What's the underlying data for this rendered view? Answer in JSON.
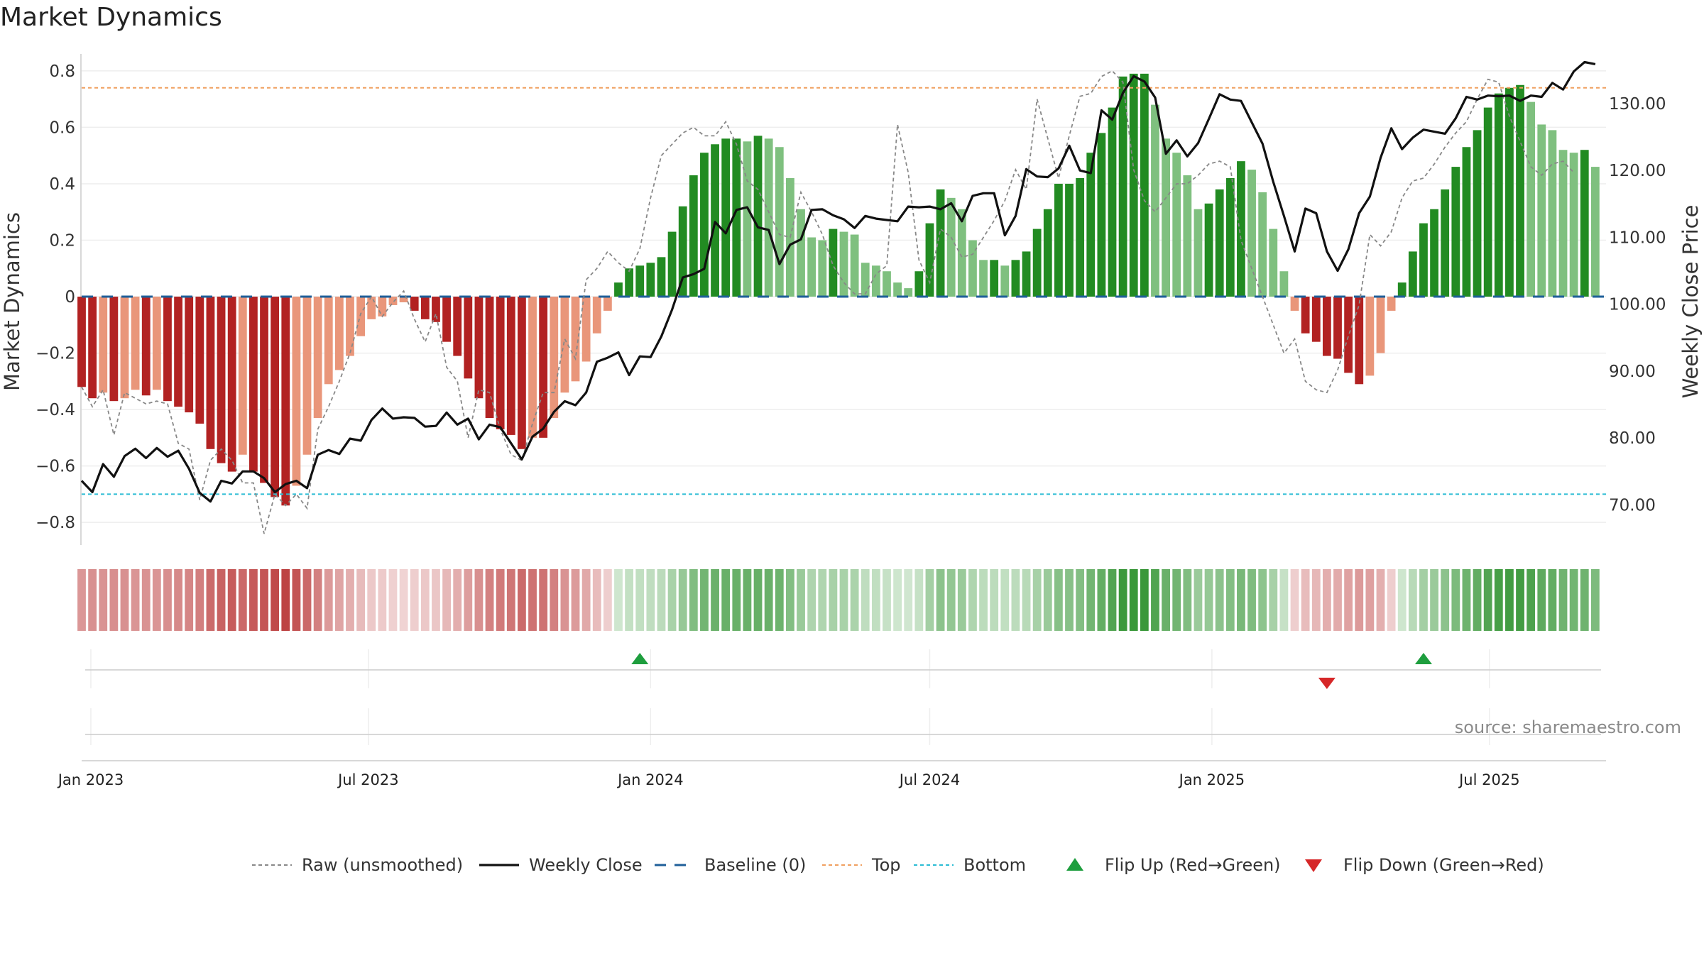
{
  "chart_data": {
    "type": "bar",
    "title": "Market Dynamics",
    "ylabel_left": "Market Dynamics",
    "ylabel_right": "Weekly Close Price",
    "ylim_left": [
      -0.88,
      0.85
    ],
    "ylim_right": [
      64.0,
      137.0
    ],
    "yticks_left": [
      {
        "value": 0.8,
        "label": "0.8"
      },
      {
        "value": 0.6,
        "label": "0.6"
      },
      {
        "value": 0.4,
        "label": "0.4"
      },
      {
        "value": 0.2,
        "label": "0.2"
      },
      {
        "value": 0.0,
        "label": "0"
      },
      {
        "value": -0.2,
        "label": "−0.2"
      },
      {
        "value": -0.4,
        "label": "−0.4"
      },
      {
        "value": -0.6,
        "label": "−0.6"
      },
      {
        "value": -0.8,
        "label": "−0.8"
      }
    ],
    "yticks_right": [
      {
        "value": 130,
        "label": "130.00"
      },
      {
        "value": 120,
        "label": "120.00"
      },
      {
        "value": 110,
        "label": "110.00"
      },
      {
        "value": 100,
        "label": "100.00"
      },
      {
        "value": 90,
        "label": "90.00"
      },
      {
        "value": 80,
        "label": "80.00"
      },
      {
        "value": 70,
        "label": "70.00"
      }
    ],
    "x_start": "2022-12-26",
    "x_end": "2025-09-15",
    "xticks": [
      {
        "date": "2023-01-01",
        "label": "Jan 2023"
      },
      {
        "date": "2023-07-01",
        "label": "Jul 2023"
      },
      {
        "date": "2024-01-01",
        "label": "Jan 2024"
      },
      {
        "date": "2024-07-01",
        "label": "Jul 2024"
      },
      {
        "date": "2025-01-01",
        "label": "Jan 2025"
      },
      {
        "date": "2025-07-01",
        "label": "Jul 2025"
      }
    ],
    "week_start": "2022-12-26",
    "bar_values": [
      -0.32,
      -0.36,
      -0.34,
      -0.37,
      -0.36,
      -0.33,
      -0.35,
      -0.33,
      -0.37,
      -0.39,
      -0.41,
      -0.45,
      -0.54,
      -0.59,
      -0.62,
      -0.56,
      -0.62,
      -0.66,
      -0.71,
      -0.74,
      -0.67,
      -0.56,
      -0.43,
      -0.31,
      -0.26,
      -0.21,
      -0.14,
      -0.08,
      -0.07,
      -0.03,
      -0.02,
      -0.05,
      -0.08,
      -0.09,
      -0.16,
      -0.21,
      -0.29,
      -0.36,
      -0.43,
      -0.47,
      -0.49,
      -0.54,
      -0.5,
      -0.5,
      -0.43,
      -0.34,
      -0.3,
      -0.23,
      -0.13,
      -0.05,
      0.05,
      0.1,
      0.11,
      0.12,
      0.14,
      0.23,
      0.32,
      0.43,
      0.51,
      0.54,
      0.56,
      0.56,
      0.55,
      0.57,
      0.56,
      0.53,
      0.42,
      0.31,
      0.21,
      0.2,
      0.24,
      0.23,
      0.22,
      0.12,
      0.11,
      0.09,
      0.05,
      0.03,
      0.09,
      0.26,
      0.38,
      0.35,
      0.31,
      0.2,
      0.13,
      0.13,
      0.11,
      0.13,
      0.16,
      0.24,
      0.31,
      0.4,
      0.4,
      0.42,
      0.51,
      0.58,
      0.67,
      0.78,
      0.79,
      0.79,
      0.68,
      0.56,
      0.51,
      0.43,
      0.31,
      0.33,
      0.38,
      0.42,
      0.48,
      0.45,
      0.37,
      0.24,
      0.09,
      -0.05,
      -0.13,
      -0.16,
      -0.21,
      -0.22,
      -0.27,
      -0.31,
      -0.28,
      -0.2,
      -0.05,
      0.05,
      0.16,
      0.26,
      0.31,
      0.38,
      0.46,
      0.53,
      0.59,
      0.67,
      0.72,
      0.74,
      0.75,
      0.69,
      0.61,
      0.59,
      0.52,
      0.51,
      0.52,
      0.46
    ],
    "raw_values": [
      -0.32,
      -0.39,
      -0.33,
      -0.49,
      -0.34,
      -0.36,
      -0.38,
      -0.37,
      -0.38,
      -0.52,
      -0.54,
      -0.72,
      -0.58,
      -0.54,
      -0.58,
      -0.66,
      -0.66,
      -0.84,
      -0.7,
      -0.74,
      -0.7,
      -0.75,
      -0.47,
      -0.39,
      -0.3,
      -0.2,
      -0.06,
      0.0,
      -0.07,
      -0.02,
      0.02,
      -0.08,
      -0.16,
      -0.06,
      -0.25,
      -0.3,
      -0.5,
      -0.33,
      -0.34,
      -0.47,
      -0.56,
      -0.58,
      -0.45,
      -0.34,
      -0.34,
      -0.15,
      -0.22,
      0.06,
      0.1,
      0.16,
      0.12,
      0.09,
      0.17,
      0.35,
      0.5,
      0.54,
      0.58,
      0.6,
      0.57,
      0.57,
      0.62,
      0.54,
      0.41,
      0.38,
      0.3,
      0.22,
      0.21,
      0.37,
      0.3,
      0.22,
      0.11,
      0.05,
      0.01,
      0.01,
      0.08,
      0.11,
      0.61,
      0.44,
      0.13,
      0.05,
      0.24,
      0.21,
      0.14,
      0.15,
      0.21,
      0.27,
      0.34,
      0.45,
      0.38,
      0.7,
      0.56,
      0.42,
      0.57,
      0.71,
      0.72,
      0.78,
      0.8,
      0.76,
      0.45,
      0.34,
      0.3,
      0.35,
      0.4,
      0.4,
      0.43,
      0.47,
      0.48,
      0.46,
      0.2,
      0.1,
      0.0,
      -0.1,
      -0.2,
      -0.15,
      -0.3,
      -0.33,
      -0.34,
      -0.26,
      -0.14,
      -0.03,
      0.22,
      0.18,
      0.23,
      0.35,
      0.41,
      0.42,
      0.47,
      0.53,
      0.58,
      0.62,
      0.7,
      0.77,
      0.76,
      0.64,
      0.55,
      0.46,
      0.43,
      0.47,
      0.48,
      0.44
    ],
    "close_values": [
      73.6,
      71.9,
      76.1,
      74.2,
      77.3,
      78.4,
      77.0,
      78.5,
      77.2,
      78.1,
      75.4,
      71.8,
      70.5,
      73.6,
      73.2,
      75.0,
      75.0,
      74.0,
      71.9,
      73.1,
      73.6,
      72.5,
      77.5,
      78.2,
      77.6,
      79.9,
      79.6,
      82.7,
      84.4,
      82.9,
      83.1,
      83.0,
      81.7,
      81.8,
      83.8,
      82.0,
      82.9,
      79.8,
      82.0,
      81.6,
      79.2,
      76.8,
      80.2,
      81.4,
      83.9,
      85.5,
      84.9,
      86.8,
      91.4,
      92.0,
      92.8,
      89.4,
      92.2,
      92.1,
      95.2,
      99.2,
      104.0,
      104.5,
      105.3,
      112.3,
      110.6,
      114.1,
      114.5,
      111.5,
      111.1,
      106.0,
      108.9,
      109.7,
      114.1,
      114.2,
      113.3,
      112.7,
      111.4,
      113.2,
      112.8,
      112.6,
      112.4,
      114.6,
      114.5,
      114.6,
      114.2,
      115.1,
      112.4,
      116.2,
      116.6,
      116.6,
      110.3,
      113.2,
      120.2,
      119.1,
      119.0,
      120.3,
      123.7,
      120.0,
      119.6,
      129.0,
      127.6,
      131.6,
      134.1,
      133.3,
      130.9,
      122.5,
      124.5,
      122.1,
      124.1,
      127.7,
      131.4,
      130.6,
      130.4,
      127.2,
      124.0,
      118.3,
      113.2,
      107.9,
      114.3,
      113.6,
      107.9,
      105.0,
      108.2,
      113.6,
      116.1,
      121.9,
      126.3,
      123.2,
      124.9,
      126.1,
      125.8,
      125.5,
      127.8,
      131.0,
      130.6,
      131.2,
      131.1,
      131.2,
      130.4,
      131.2,
      131.0,
      133.1,
      132.1,
      134.8,
      136.2,
      135.9
    ],
    "top_line": 0.74,
    "bottom_line": -0.7,
    "baseline": 0,
    "flip_up_dates": [
      "2023-12-25",
      "2025-05-19"
    ],
    "flip_down_dates": [
      "2025-03-17"
    ],
    "legend_position": "bottom",
    "legend": [
      {
        "key": "raw",
        "label": "Raw (unsmoothed)"
      },
      {
        "key": "close",
        "label": "Weekly Close"
      },
      {
        "key": "baseline",
        "label": "Baseline (0)"
      },
      {
        "key": "top",
        "label": "Top"
      },
      {
        "key": "bottom",
        "label": "Bottom"
      },
      {
        "key": "flip_up",
        "label": "Flip Up (Red→Green)"
      },
      {
        "key": "flip_down",
        "label": "Flip Down (Green→Red)"
      }
    ],
    "source": "source: sharemaestro.com"
  },
  "colors": {
    "bar_pos_strong": "#228b22",
    "bar_pos_weak": "#7fc07f",
    "bar_neg_strong": "#b22222",
    "bar_neg_weak": "#e9967a",
    "close_line": "#111111",
    "raw_line": "#888888",
    "baseline": "#1f5f99",
    "top": "#f0a060",
    "bottom": "#2bbcd4",
    "flip_up": "#1e9e3e",
    "flip_down": "#d62728",
    "strip_pos": "#228b22",
    "strip_neg": "#b22222"
  }
}
